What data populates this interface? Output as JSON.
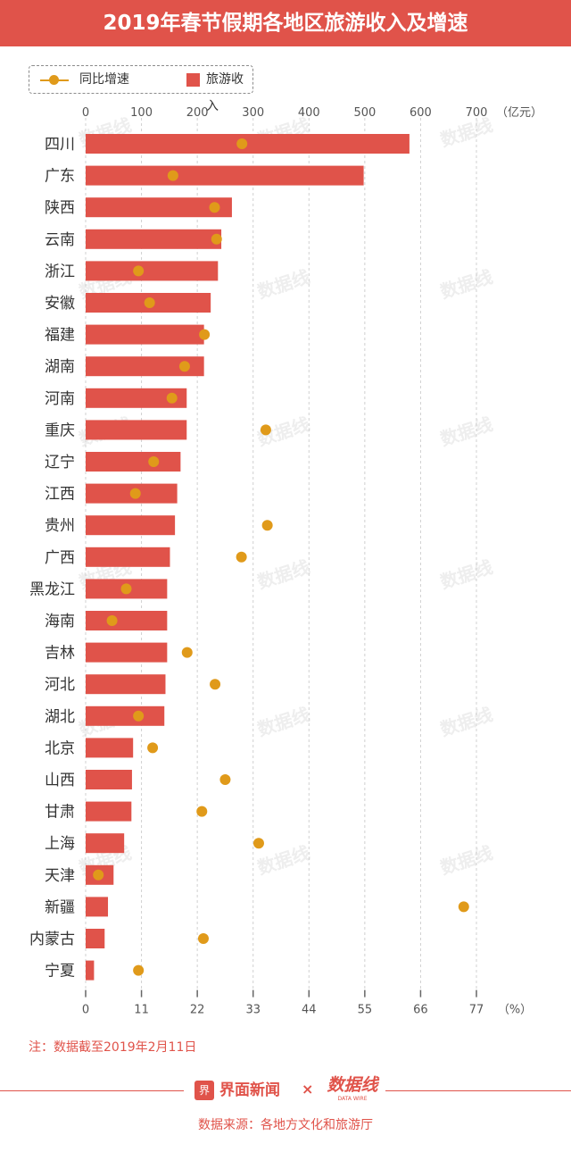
{
  "title": "2019年春节假期各地区旅游收入及增速",
  "legend": {
    "growth_label": "同比增速",
    "revenue_label": "旅游收入"
  },
  "colors": {
    "bar": "#e0534a",
    "growth": "#e09a1a",
    "title_bg": "#e0534a",
    "grid": "#d0d0d0",
    "text": "#333333",
    "note": "#e0534a"
  },
  "watermark_text": "数据线",
  "chart_data": {
    "type": "bar",
    "orientation": "horizontal",
    "categories": [
      "四川",
      "广东",
      "陕西",
      "云南",
      "浙江",
      "安徽",
      "福建",
      "湖南",
      "河南",
      "重庆",
      "辽宁",
      "江西",
      "贵州",
      "广西",
      "黑龙江",
      "海南",
      "吉林",
      "河北",
      "湖北",
      "北京",
      "山西",
      "甘肃",
      "上海",
      "天津",
      "新疆",
      "内蒙古",
      "宁夏"
    ],
    "series": [
      {
        "name": "旅游收入",
        "type": "bar",
        "axis": "top",
        "values": [
          580,
          498,
          262,
          243,
          237,
          224,
          212,
          212,
          181,
          181,
          170,
          164,
          160,
          151,
          146,
          146,
          146,
          143,
          141,
          85,
          83,
          82,
          69,
          50,
          40,
          34,
          15
        ]
      },
      {
        "name": "同比增速",
        "type": "scatter",
        "axis": "bottom",
        "values": [
          30.8,
          17.2,
          25.4,
          25.8,
          10.4,
          12.6,
          23.4,
          19.5,
          17.0,
          35.5,
          13.4,
          9.8,
          35.8,
          30.7,
          8.0,
          5.2,
          20.0,
          25.5,
          10.4,
          13.2,
          27.5,
          22.9,
          34.1,
          2.5,
          74.5,
          23.2,
          10.4
        ]
      }
    ],
    "top_axis": {
      "unit": "（亿元）",
      "ticks": [
        "0",
        "100",
        "200",
        "300",
        "400",
        "500",
        "600",
        "700"
      ],
      "range": [
        0,
        700
      ]
    },
    "bottom_axis": {
      "unit": "（%）",
      "ticks": [
        "0",
        "11",
        "22",
        "33",
        "44",
        "55",
        "66",
        "77"
      ],
      "range": [
        0,
        77
      ]
    },
    "grid": true,
    "legend_position": "top-left"
  },
  "note": "注：数据截至2019年2月11日",
  "footer": {
    "brand_name": "界面新闻",
    "brand_icon": "界",
    "cross": "×",
    "partner_logo_text": "数据线",
    "partner_tagline": "DATA WIRE",
    "source": "数据来源：各地方文化和旅游厅"
  }
}
